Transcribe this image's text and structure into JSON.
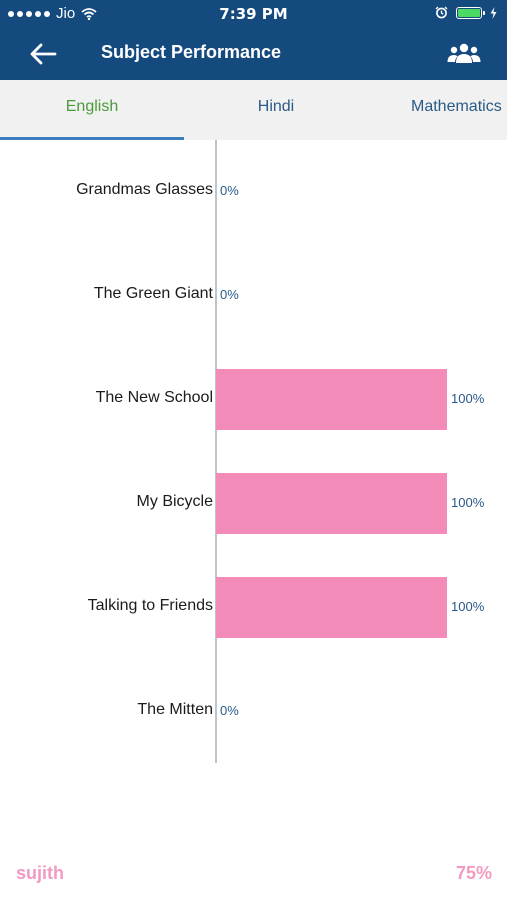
{
  "status_bar": {
    "carrier": "Jio",
    "time": "7:39 PM"
  },
  "header": {
    "title": "Subject Performance"
  },
  "tabs": [
    {
      "label": "English",
      "active": true
    },
    {
      "label": "Hindi",
      "active": false
    },
    {
      "label": "Mathematics",
      "active": false
    }
  ],
  "chart_data": {
    "type": "bar",
    "orientation": "horizontal",
    "categories": [
      "Grandmas Glasses",
      "The Green Giant",
      "The New School",
      "My Bicycle",
      "Talking to Friends",
      "The Mitten"
    ],
    "values": [
      0,
      0,
      100,
      100,
      100,
      0
    ],
    "value_labels": [
      "0%",
      "0%",
      "100%",
      "100%",
      "100%",
      "0%"
    ],
    "xlim": [
      0,
      100
    ],
    "bar_color": "#f28bb7"
  },
  "footer": {
    "student_name": "sujith",
    "overall_percentage": "75%"
  },
  "colors": {
    "primary": "#154a7e",
    "active_tab": "#4a9a3c",
    "accent": "#f29ac2"
  }
}
